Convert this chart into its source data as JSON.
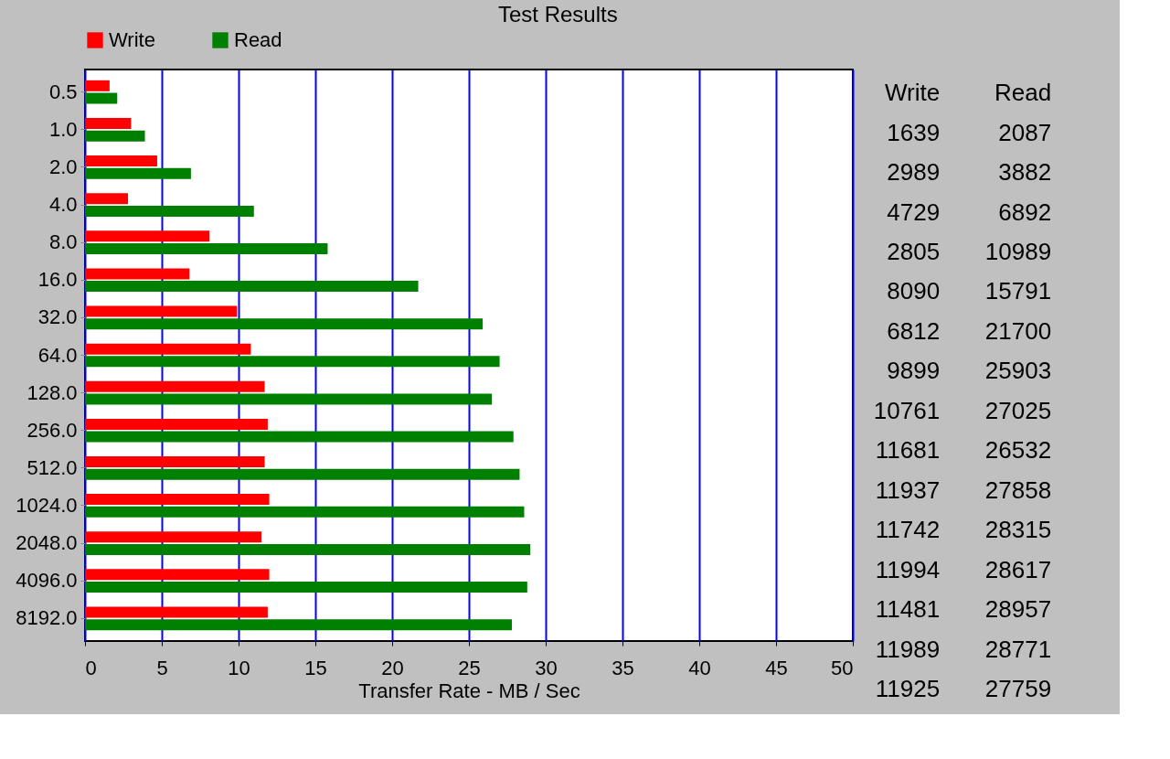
{
  "chart_data": [
    {
      "type": "bar",
      "orientation": "horizontal",
      "title": "Test Results",
      "xlabel": "Transfer Rate - MB / Sec",
      "categories": [
        "0.5",
        "1.0",
        "2.0",
        "4.0",
        "8.0",
        "16.0",
        "32.0",
        "64.0",
        "128.0",
        "256.0",
        "512.0",
        "1024.0",
        "2048.0",
        "4096.0",
        "8192.0"
      ],
      "series": [
        {
          "name": "Write",
          "color": "#ff0000",
          "values": [
            1.6,
            3.0,
            4.7,
            2.8,
            8.1,
            6.8,
            9.9,
            10.8,
            11.7,
            11.9,
            11.7,
            12.0,
            11.5,
            12.0,
            11.9
          ]
        },
        {
          "name": "Read",
          "color": "#008000",
          "values": [
            2.1,
            3.9,
            6.9,
            11.0,
            15.8,
            21.7,
            25.9,
            27.0,
            26.5,
            27.9,
            28.3,
            28.6,
            29.0,
            28.8,
            27.8
          ]
        }
      ],
      "xlim": [
        0,
        50
      ],
      "xticks": [
        0,
        5,
        10,
        15,
        20,
        25,
        30,
        35,
        40,
        45,
        50
      ],
      "grid": "x",
      "legend": "top"
    },
    {
      "type": "other",
      "annotations": [
        "Write",
        "Read",
        "1639",
        "2087",
        "2989",
        "3882",
        "4729",
        "6892",
        "2805",
        "10989",
        "8090",
        "15791",
        "6812",
        "21700",
        "9899",
        "25903",
        "10761",
        "27025",
        "11681",
        "26532",
        "11937",
        "27858",
        "11742",
        "28315",
        "11994",
        "28617",
        "11481",
        "28957",
        "11989",
        "28771",
        "11925",
        "27759"
      ]
    }
  ]
}
